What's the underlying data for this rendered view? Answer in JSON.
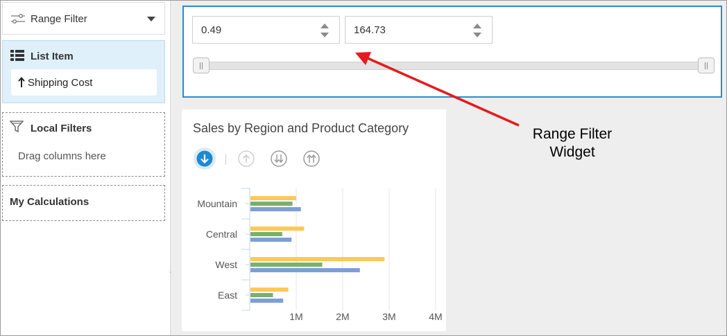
{
  "sidebar": {
    "range_filter": {
      "label": "Range Filter",
      "icon": "sliders-icon"
    },
    "list_item": {
      "label": "List Item",
      "icon": "list-icon",
      "field": "Shipping Cost",
      "field_icon": "arrow-up-icon"
    },
    "local_filters": {
      "label": "Local Filters",
      "icon": "funnel-icon",
      "hint": "Drag columns here"
    },
    "calculations": {
      "label": "My Calculations"
    }
  },
  "range_widget": {
    "min_value": "0.49",
    "max_value": "164.73",
    "slider_range": [
      0.49,
      164.73
    ],
    "selected_range": [
      0.49,
      164.73
    ]
  },
  "chart": {
    "title": "Sales by Region and Product Category",
    "sort_buttons": [
      "sort-descending",
      "sort-ascending",
      "sort-double-down",
      "sort-double-up"
    ],
    "active_sort": "sort-descending"
  },
  "chart_data": {
    "type": "bar",
    "orientation": "horizontal",
    "title": "Sales by Region and Product Category",
    "categories": [
      "Mountain",
      "Central",
      "West",
      "East"
    ],
    "series": [
      {
        "color": "#fdc85a",
        "values": [
          1000000,
          1170000,
          2900000,
          830000
        ]
      },
      {
        "color": "#7ab06a",
        "values": [
          920000,
          700000,
          1560000,
          500000
        ]
      },
      {
        "color": "#7d9fd6",
        "values": [
          1100000,
          900000,
          2370000,
          720000
        ]
      }
    ],
    "x_tick_labels": [
      "1M",
      "2M",
      "3M",
      "4M"
    ],
    "x_ticks": [
      1000000,
      2000000,
      3000000,
      4000000
    ],
    "xlim": [
      0,
      4000000
    ],
    "grid": true,
    "legend": "none"
  },
  "annotation": {
    "line1": "Range Filter",
    "line2": "Widget",
    "color": "#e8191b"
  }
}
